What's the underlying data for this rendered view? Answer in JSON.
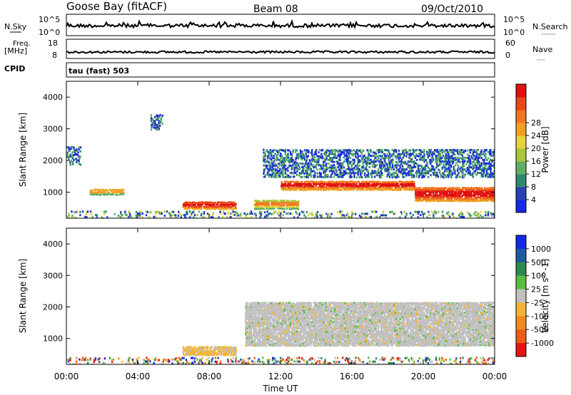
{
  "header": {
    "station": "Goose Bay (fitACF)",
    "beam": "Beam 08",
    "date": "09/Oct/2010"
  },
  "top_panels": {
    "nsky_label": "N.Sky",
    "nsearch_label": "N.Search",
    "nsearch_dots": "·······",
    "noise_ticks": [
      "10^5",
      "10^0"
    ],
    "freq_label_1": "Freq.",
    "freq_label_2": "[MHz]",
    "freq_ticks": [
      "18",
      "8"
    ],
    "nave_label": "Nave",
    "nave_dots": "····",
    "nave_ticks": [
      "60",
      "0"
    ],
    "cpid_label": "CPID",
    "cpid_value": "tau (fast) 503"
  },
  "chart_data": [
    {
      "type": "heatmap",
      "title": "Power",
      "ylabel": "Slant Range [km]",
      "xlabel": "Time UT",
      "ylim": [
        180,
        4500
      ],
      "xticks": [
        "00:00",
        "04:00",
        "08:00",
        "12:00",
        "16:00",
        "20:00",
        "00:00"
      ],
      "yticks": [
        1000,
        2000,
        3000,
        4000
      ],
      "colorbar": {
        "label": "Power [dB]",
        "ticks": [
          "4",
          "8",
          "12",
          "16",
          "20",
          "24",
          "28"
        ],
        "colors": [
          "#1428e6",
          "#2840b4",
          "#2e8a6e",
          "#5fae63",
          "#a8c83a",
          "#e6d23a",
          "#f0a020",
          "#f07820",
          "#e84818",
          "#e01010"
        ]
      },
      "features": [
        {
          "time_h": [
            0.0,
            0.8
          ],
          "range_km": [
            1900,
            2500
          ],
          "level": "low"
        },
        {
          "time_h": [
            1.3,
            3.2
          ],
          "range_km": [
            950,
            1150
          ],
          "level": "medium"
        },
        {
          "time_h": [
            4.7,
            5.4
          ],
          "range_km": [
            3000,
            3500
          ],
          "level": "low"
        },
        {
          "time_h": [
            6.5,
            9.5
          ],
          "range_km": [
            500,
            750
          ],
          "level": "high"
        },
        {
          "time_h": [
            10.5,
            13.0
          ],
          "range_km": [
            500,
            800
          ],
          "level": "medium"
        },
        {
          "time_h": [
            12.0,
            19.5
          ],
          "range_km": [
            1100,
            1400
          ],
          "level": "high"
        },
        {
          "time_h": [
            11.0,
            24.0
          ],
          "range_km": [
            1500,
            2400
          ],
          "level": "low"
        },
        {
          "time_h": [
            19.5,
            24.0
          ],
          "range_km": [
            750,
            1200
          ],
          "level": "high"
        },
        {
          "time_h": [
            0.0,
            24.0
          ],
          "range_km": [
            180,
            450
          ],
          "level": "scatter"
        }
      ]
    },
    {
      "type": "heatmap",
      "title": "Velocity",
      "ylabel": "Slant Range [km]",
      "xlabel": "Time UT",
      "ylim": [
        180,
        4500
      ],
      "xticks": [
        "00:00",
        "04:00",
        "08:00",
        "12:00",
        "16:00",
        "20:00",
        "00:00"
      ],
      "yticks": [
        1000,
        2000,
        3000,
        4000
      ],
      "colorbar": {
        "label": "Velocity [m s^-1]",
        "ticks": [
          "1000",
          "500",
          "100",
          "25",
          "-25",
          "-100",
          "-500",
          "-1000"
        ],
        "colors": [
          "#1428e6",
          "#1e5aa0",
          "#2e8a4e",
          "#5abe3c",
          "#c0c0c0",
          "#f5b432",
          "#f08c1e",
          "#f05a14",
          "#e61414"
        ]
      },
      "features": [
        {
          "time_h": [
            6.5,
            9.5
          ],
          "range_km": [
            500,
            800
          ],
          "velocity": "-100"
        },
        {
          "time_h": [
            10.0,
            24.0
          ],
          "range_km": [
            800,
            2200
          ],
          "velocity": "0"
        },
        {
          "time_h": [
            0.0,
            24.0
          ],
          "range_km": [
            180,
            450
          ],
          "velocity": "mixed"
        }
      ]
    }
  ]
}
